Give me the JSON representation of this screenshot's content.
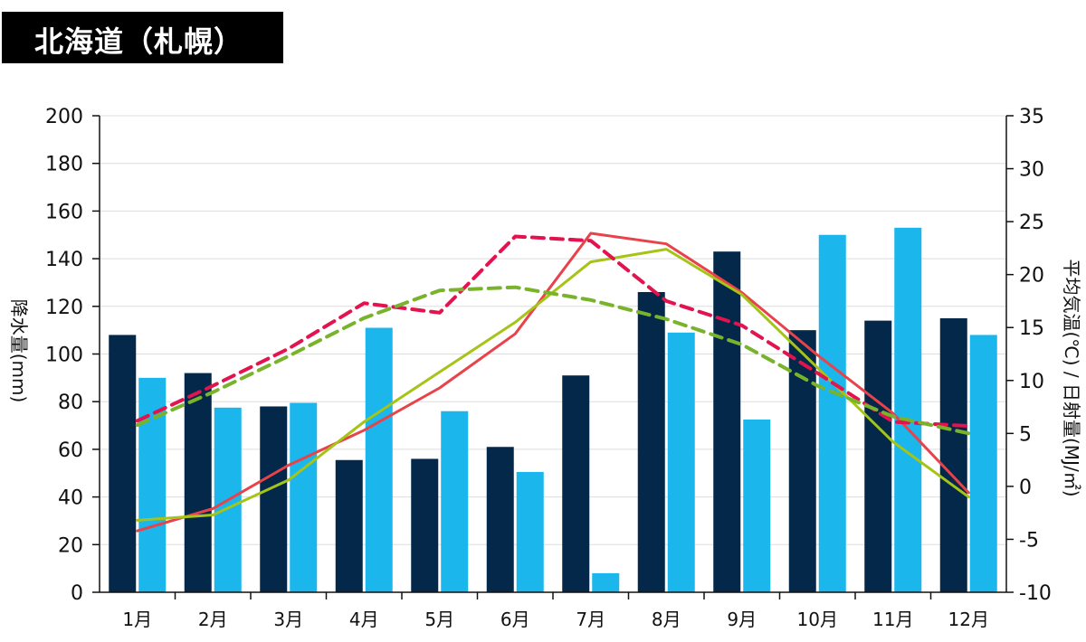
{
  "title": "北海道（札幌）",
  "chart_data": {
    "type": "bar+line",
    "categories": [
      "1月",
      "2月",
      "3月",
      "4月",
      "5月",
      "6月",
      "7月",
      "8月",
      "9月",
      "10月",
      "11月",
      "12月"
    ],
    "left_axis": {
      "label": "降水量(mm)",
      "range": [
        0,
        200
      ],
      "ticks": [
        "0",
        "20",
        "40",
        "60",
        "80",
        "100",
        "120",
        "140",
        "160",
        "180",
        "200"
      ]
    },
    "right_axis": {
      "label": "平均気温(℃) / 日射量(MJ/㎡)",
      "range": [
        -10,
        35
      ],
      "ticks": [
        "-10",
        "-5",
        "0",
        "5",
        "10",
        "15",
        "20",
        "25",
        "30",
        "35"
      ]
    },
    "bar_series": [
      {
        "name": "降水量 (dark)",
        "color": "#03284a",
        "axis": "left",
        "values": [
          108,
          92,
          78,
          55.5,
          56,
          61,
          91,
          126,
          143,
          110,
          114,
          115
        ]
      },
      {
        "name": "降水量 (light)",
        "color": "#1ab6ec",
        "axis": "left",
        "values": [
          90,
          77.5,
          79.5,
          111,
          76,
          50.5,
          8,
          109,
          72.5,
          150,
          153,
          108
        ]
      }
    ],
    "line_series": [
      {
        "name": "平均気温 (red)",
        "color": "#e8424a",
        "style": "solid",
        "axis": "right",
        "values": [
          -4.2,
          -2.1,
          2.0,
          5.3,
          9.3,
          14.4,
          23.9,
          22.9,
          18.3,
          12.4,
          6.9,
          -0.6
        ]
      },
      {
        "name": "平均気温 (green)",
        "color": "#a6c417",
        "style": "solid",
        "axis": "right",
        "values": [
          -3.2,
          -2.7,
          0.6,
          6.1,
          10.8,
          15.5,
          21.2,
          22.4,
          18.1,
          11.2,
          4.2,
          -1.0
        ]
      },
      {
        "name": "日射量 (magenta)",
        "color": "#e2134e",
        "style": "dashed",
        "axis": "right",
        "values": [
          6.2,
          9.5,
          13.0,
          17.3,
          16.4,
          23.6,
          23.2,
          17.5,
          15.2,
          10.7,
          6.1,
          5.7
        ]
      },
      {
        "name": "日射量 (green)",
        "color": "#79b32c",
        "style": "dashed",
        "axis": "right",
        "values": [
          5.8,
          8.9,
          12.3,
          15.9,
          18.5,
          18.8,
          17.6,
          15.8,
          13.4,
          9.5,
          6.6,
          5.0
        ]
      }
    ],
    "grid": true
  }
}
